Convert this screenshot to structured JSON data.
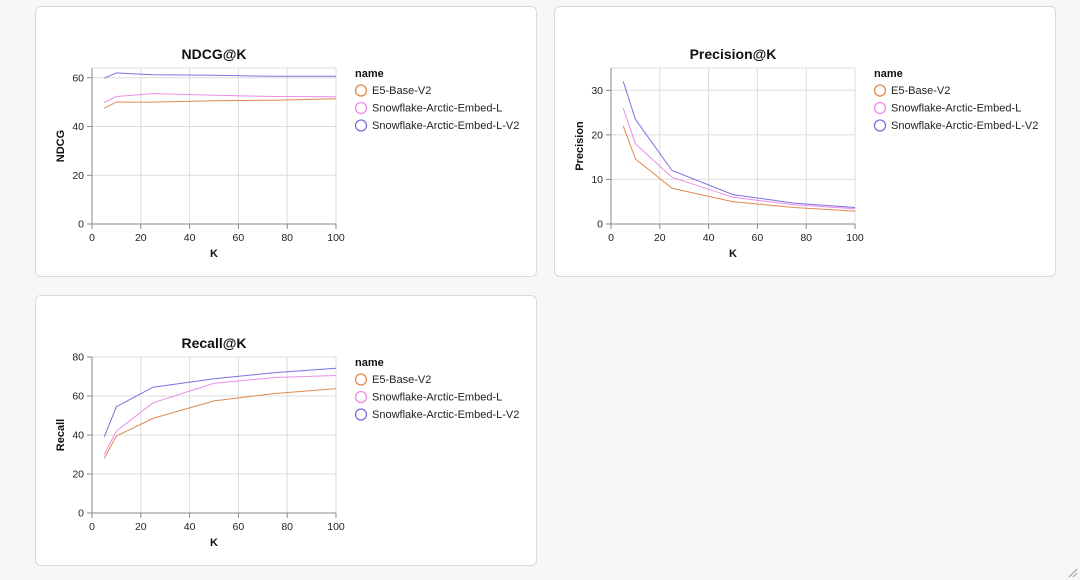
{
  "chart_data": [
    {
      "type": "line",
      "title": "NDCG@K",
      "xlabel": "K",
      "ylabel": "NDCG",
      "xlim": [
        0,
        100
      ],
      "ylim": [
        0,
        64
      ],
      "x_ticks": [
        0,
        20,
        40,
        60,
        80,
        100
      ],
      "y_ticks": [
        0,
        20,
        40,
        60
      ],
      "grid": true,
      "legend": {
        "title": "name",
        "position": "right"
      },
      "series": [
        {
          "name": "E5-Base-V2",
          "color": "#e08a4e",
          "points": [
            [
              5,
              47.5
            ],
            [
              10,
              50
            ],
            [
              25,
              50
            ],
            [
              50,
              50.6
            ],
            [
              75,
              50.8
            ],
            [
              100,
              51.4
            ]
          ]
        },
        {
          "name": "Snowflake-Arctic-Embed-L",
          "color": "#e98ee8",
          "points": [
            [
              5,
              49.8
            ],
            [
              10,
              52.3
            ],
            [
              25,
              53.5
            ],
            [
              50,
              52.8
            ],
            [
              75,
              52.3
            ],
            [
              100,
              52.2
            ]
          ]
        },
        {
          "name": "Snowflake-Arctic-Embed-L-V2",
          "color": "#7f6fe0",
          "points": [
            [
              5,
              59.8
            ],
            [
              10,
              62
            ],
            [
              25,
              61.2
            ],
            [
              50,
              61
            ],
            [
              75,
              60.6
            ],
            [
              100,
              60.6
            ]
          ]
        }
      ]
    },
    {
      "type": "line",
      "title": "Precision@K",
      "xlabel": "K",
      "ylabel": "Precision",
      "xlim": [
        0,
        100
      ],
      "ylim": [
        0,
        35
      ],
      "x_ticks": [
        0,
        20,
        40,
        60,
        80,
        100
      ],
      "y_ticks": [
        0,
        10,
        20,
        30
      ],
      "grid": true,
      "legend": {
        "title": "name",
        "position": "right"
      },
      "series": [
        {
          "name": "E5-Base-V2",
          "color": "#e08a4e",
          "points": [
            [
              5,
              22
            ],
            [
              10,
              14.6
            ],
            [
              25,
              8
            ],
            [
              50,
              5
            ],
            [
              75,
              3.7
            ],
            [
              100,
              2.9
            ]
          ]
        },
        {
          "name": "Snowflake-Arctic-Embed-L",
          "color": "#e98ee8",
          "points": [
            [
              5,
              26
            ],
            [
              10,
              18
            ],
            [
              25,
              10.5
            ],
            [
              50,
              6
            ],
            [
              75,
              4.3
            ],
            [
              100,
              3.4
            ]
          ]
        },
        {
          "name": "Snowflake-Arctic-Embed-L-V2",
          "color": "#7f6fe0",
          "points": [
            [
              5,
              32
            ],
            [
              10,
              23.5
            ],
            [
              25,
              12
            ],
            [
              50,
              6.6
            ],
            [
              75,
              4.7
            ],
            [
              100,
              3.7
            ]
          ]
        }
      ]
    },
    {
      "type": "line",
      "title": "Recall@K",
      "xlabel": "K",
      "ylabel": "Recall",
      "xlim": [
        0,
        100
      ],
      "ylim": [
        0,
        80
      ],
      "x_ticks": [
        0,
        20,
        40,
        60,
        80,
        100
      ],
      "y_ticks": [
        0,
        20,
        40,
        60,
        80
      ],
      "grid": true,
      "legend": {
        "title": "name",
        "position": "right"
      },
      "series": [
        {
          "name": "E5-Base-V2",
          "color": "#e08a4e",
          "points": [
            [
              5,
              28
            ],
            [
              10,
              39.5
            ],
            [
              25,
              48.5
            ],
            [
              50,
              57.5
            ],
            [
              75,
              61.3
            ],
            [
              100,
              63.8
            ]
          ]
        },
        {
          "name": "Snowflake-Arctic-Embed-L",
          "color": "#e98ee8",
          "points": [
            [
              5,
              30
            ],
            [
              10,
              42
            ],
            [
              25,
              56.5
            ],
            [
              50,
              66.5
            ],
            [
              75,
              69.5
            ],
            [
              100,
              70.5
            ]
          ]
        },
        {
          "name": "Snowflake-Arctic-Embed-L-V2",
          "color": "#7f6fe0",
          "points": [
            [
              5,
              39
            ],
            [
              10,
              54.5
            ],
            [
              25,
              64.5
            ],
            [
              50,
              68.8
            ],
            [
              75,
              72
            ],
            [
              100,
              74.2
            ]
          ]
        }
      ]
    }
  ]
}
